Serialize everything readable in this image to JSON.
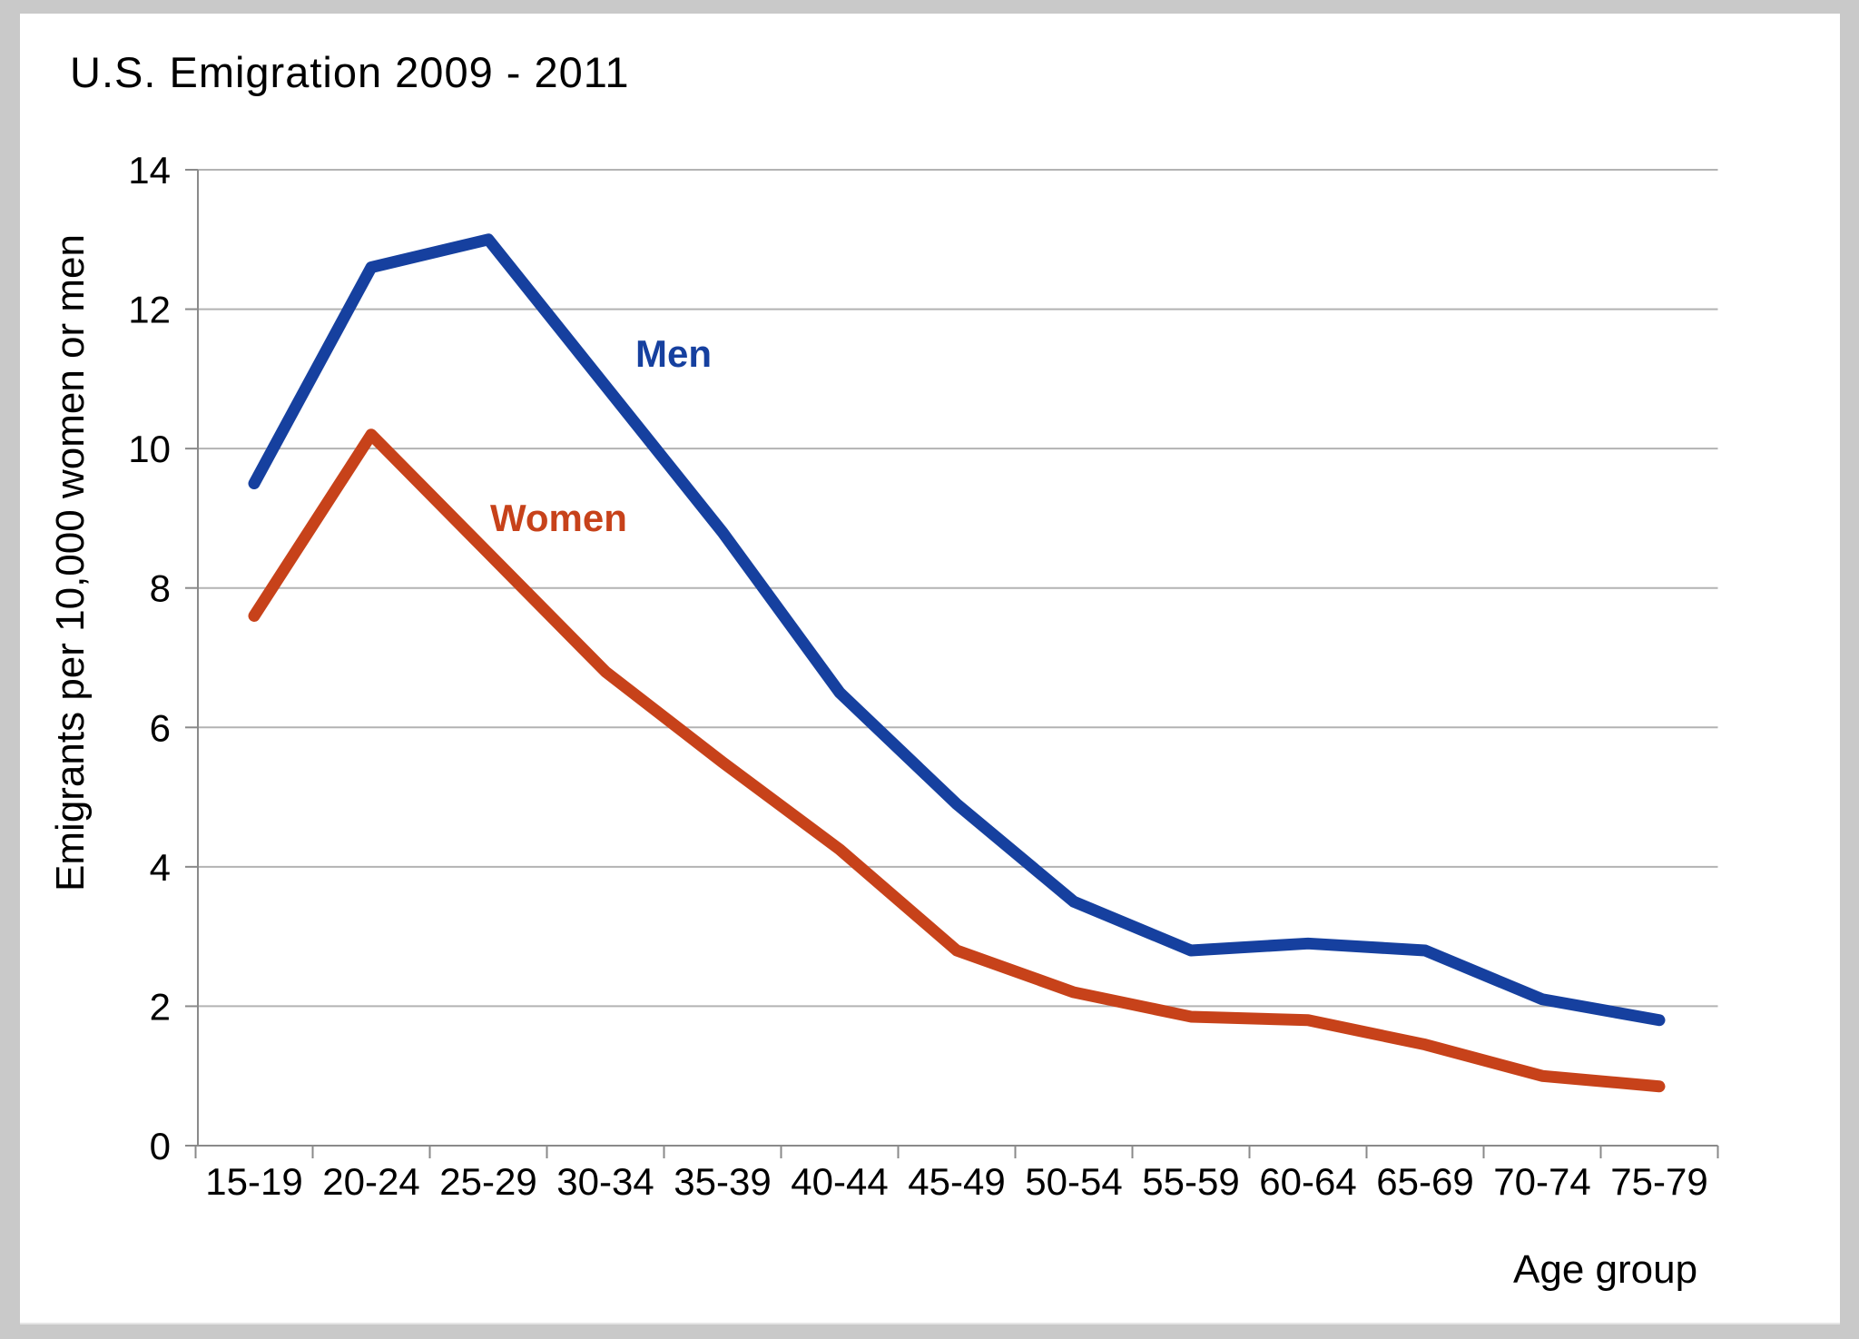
{
  "window": {
    "background_color": "#c9c9c9",
    "panel_color": "#ffffff"
  },
  "chart_data": {
    "type": "line",
    "title": "U.S. Emigration 2009 - 2011",
    "xlabel": "Age group",
    "ylabel": "Emigrants per 10,000 women or men",
    "categories": [
      "15-19",
      "20-24",
      "25-29",
      "30-34",
      "35-39",
      "40-44",
      "45-49",
      "50-54",
      "55-59",
      "60-64",
      "65-69",
      "70-74",
      "75-79"
    ],
    "series": [
      {
        "name": "Men",
        "color": "#16409f",
        "values": [
          9.5,
          12.6,
          13.0,
          10.9,
          8.8,
          6.5,
          4.9,
          3.5,
          2.8,
          2.9,
          2.8,
          2.1,
          1.8
        ]
      },
      {
        "name": "Women",
        "color": "#c7421a",
        "values": [
          7.6,
          10.2,
          8.5,
          6.8,
          5.5,
          4.25,
          2.8,
          2.2,
          1.85,
          1.8,
          1.45,
          1.0,
          0.85
        ]
      }
    ],
    "ylim": [
      0,
      14
    ],
    "y_ticks": [
      0,
      2,
      4,
      6,
      8,
      10,
      12,
      14
    ],
    "grid": "horizontal",
    "legend": "inline-labels",
    "gridline_color": "#b3b3b3",
    "axis_color": "#8a8a8a",
    "line_width": 13
  }
}
